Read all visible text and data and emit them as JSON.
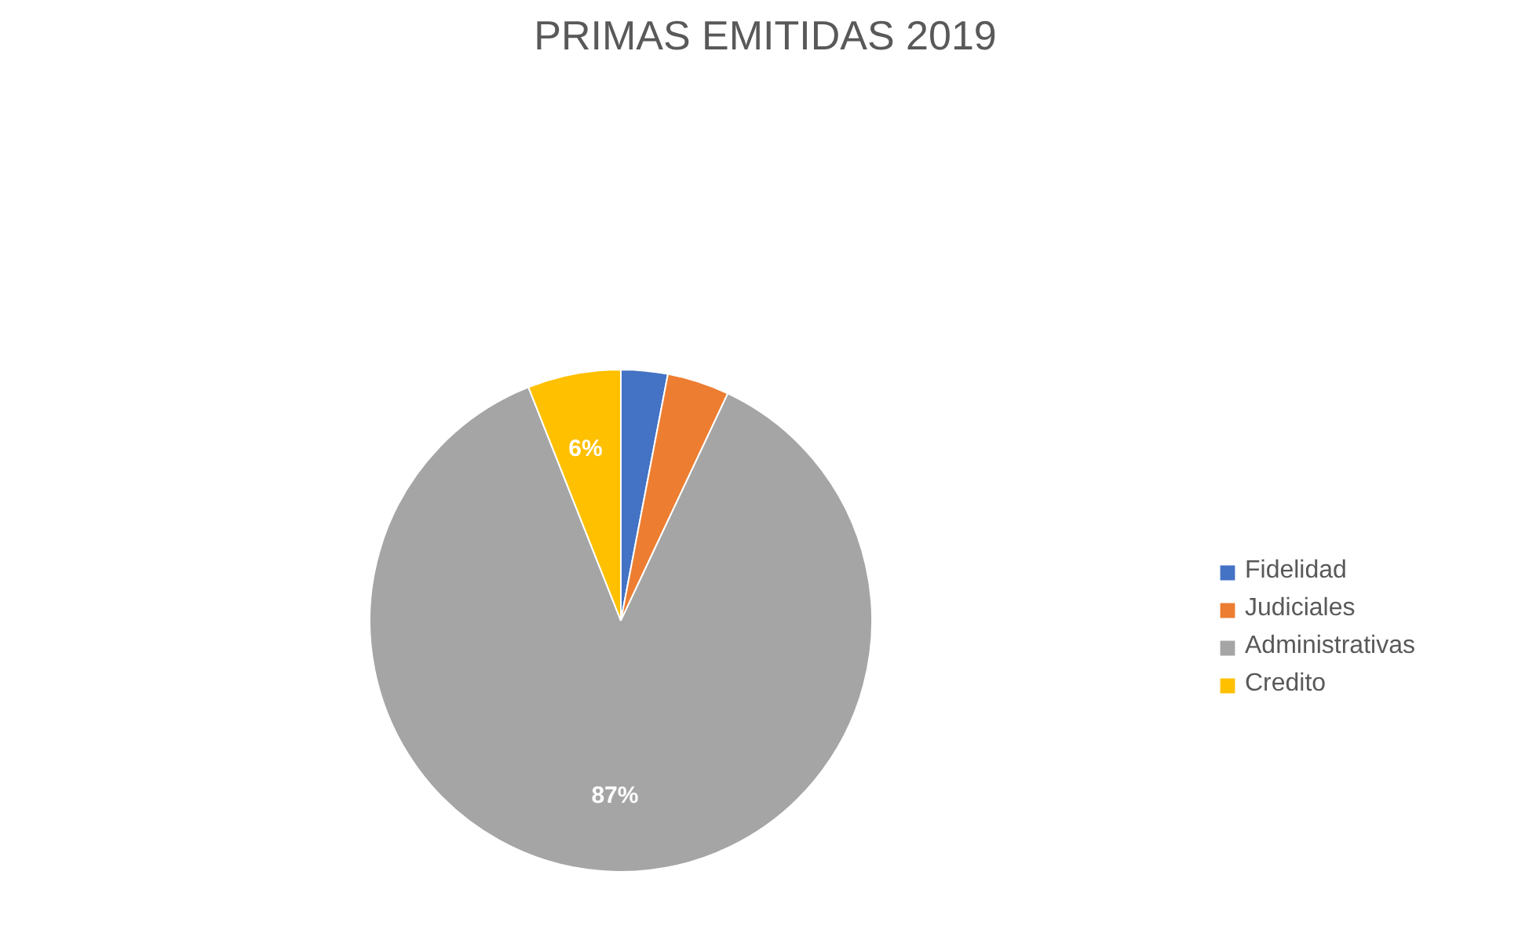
{
  "chart_data": {
    "type": "pie",
    "title": "PRIMAS EMITIDAS 2019",
    "categories": [
      "Fidelidad",
      "Judiciales",
      "Administrativas",
      "Credito"
    ],
    "values": [
      3,
      4,
      87,
      6
    ],
    "colors": [
      "#4472c4",
      "#ed7d31",
      "#a5a5a5",
      "#ffc000"
    ],
    "value_labels": [
      null,
      null,
      "87%",
      "6%"
    ],
    "legend": "right"
  }
}
